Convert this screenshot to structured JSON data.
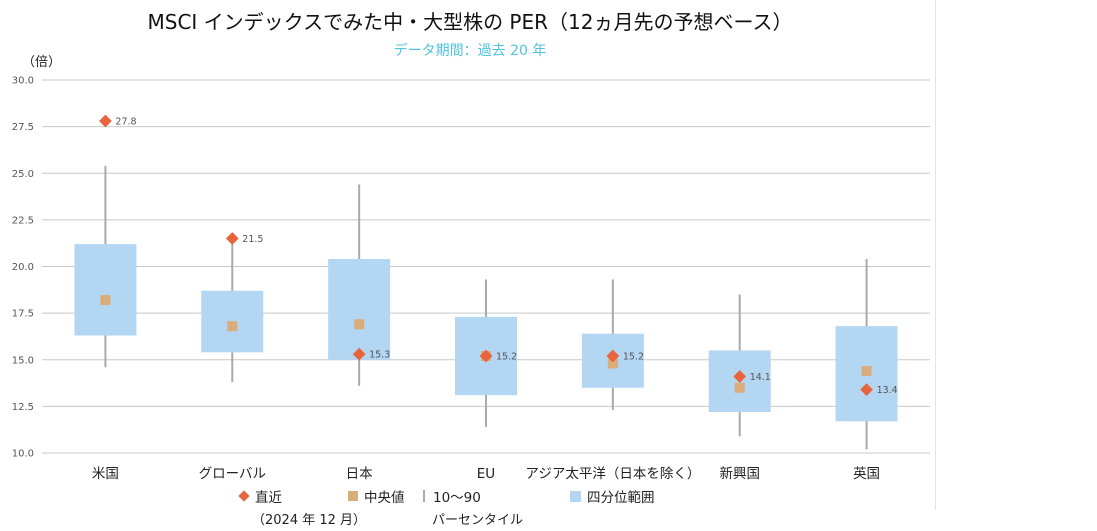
{
  "title": "MSCI インデックスでみた中・大型株の PER（12ヵ月先の予想ベース）",
  "subtitle": "データ期間：過去 20 年",
  "unit_label": "（倍）",
  "colors": {
    "latest": "#e8643c",
    "median": "#d9ac7a",
    "range_line": "#aaaaaa",
    "iqr_box": "#b3d6f2",
    "grid": "#c8c8c8",
    "subtitle": "#4fc3e0"
  },
  "legend": {
    "latest": "直近",
    "latest_note": "（2024 年 12 月）",
    "median": "中央値",
    "range": "10～90",
    "range_note": "パーセンタイル",
    "iqr": "四分位範囲"
  },
  "chart_data": {
    "type": "box",
    "y_range": [
      10,
      30
    ],
    "y_ticks": [
      "10.0",
      "12.5",
      "15.0",
      "17.5",
      "20.0",
      "22.5",
      "25.0",
      "27.5",
      "30.0"
    ],
    "grid": true,
    "legend_position": "bottom",
    "categories": [
      "米国",
      "グローバル",
      "日本",
      "EU",
      "アジア太平洋（日本を除く）",
      "新興国",
      "英国"
    ],
    "series": [
      {
        "name": "直近",
        "values": [
          27.8,
          21.5,
          15.3,
          15.2,
          15.2,
          14.1,
          13.4
        ],
        "labels": [
          "27.8",
          "21.5",
          "15.3",
          "15.2",
          "15.2",
          "14.1",
          "13.4"
        ]
      },
      {
        "name": "中央値",
        "values": [
          18.2,
          16.8,
          16.9,
          15.2,
          14.8,
          13.5,
          14.4
        ]
      },
      {
        "name": "10～90 パーセンタイル",
        "low": [
          14.6,
          13.8,
          13.6,
          11.4,
          12.3,
          10.9,
          10.2
        ],
        "high": [
          25.4,
          21.2,
          24.4,
          19.3,
          19.3,
          18.5,
          20.4
        ]
      },
      {
        "name": "四分位範囲",
        "low": [
          16.3,
          15.4,
          15.0,
          13.1,
          13.5,
          12.2,
          11.7
        ],
        "high": [
          21.2,
          18.7,
          20.4,
          17.3,
          16.4,
          15.5,
          16.8
        ]
      }
    ]
  }
}
